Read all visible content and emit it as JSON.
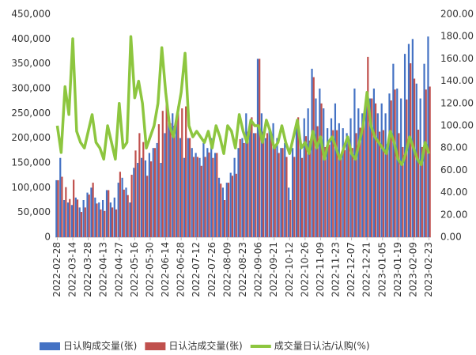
{
  "chart_data": {
    "type": "bar-line",
    "categories": [
      "2022-02-28",
      null,
      null,
      null,
      "2022-03-14",
      null,
      null,
      null,
      "2022-03-28",
      null,
      null,
      null,
      "2022-04-13",
      null,
      null,
      null,
      "2022-04-27",
      null,
      null,
      null,
      "2022-05-16",
      null,
      null,
      null,
      "2022-05-30",
      null,
      null,
      null,
      "2022-06-14",
      null,
      null,
      null,
      "2022-06-28",
      null,
      null,
      null,
      "2022-07-12",
      null,
      null,
      null,
      "2022-07-26",
      null,
      null,
      null,
      "2022-08-09",
      null,
      null,
      null,
      "2022-08-23",
      null,
      null,
      null,
      "2022-09-06",
      null,
      null,
      null,
      "2022-09-21",
      null,
      null,
      null,
      "2022-10-12",
      null,
      null,
      null,
      "2022-10-26",
      null,
      null,
      null,
      "2022-11-09",
      null,
      null,
      null,
      "2022-11-23",
      null,
      null,
      null,
      "2022-12-07",
      null,
      null,
      null,
      "2022-12-21",
      null,
      null,
      null,
      "2023-01-05",
      null,
      null,
      null,
      "2023-01-19",
      null,
      null,
      null,
      "2023-02-09",
      null,
      null,
      null,
      "2023-02-23"
    ],
    "series": [
      {
        "name": "日认购成交量(张)",
        "color": "#4472c4",
        "axis": "y",
        "values": [
          115000,
          160000,
          75000,
          70000,
          65000,
          80000,
          60000,
          75000,
          90000,
          100000,
          80000,
          70000,
          75000,
          95000,
          70000,
          80000,
          110000,
          120000,
          100000,
          70000,
          140000,
          150000,
          160000,
          155000,
          170000,
          180000,
          190000,
          150000,
          210000,
          230000,
          250000,
          240000,
          200000,
          160000,
          200000,
          180000,
          170000,
          160000,
          190000,
          180000,
          200000,
          170000,
          120000,
          100000,
          110000,
          130000,
          160000,
          180000,
          200000,
          250000,
          230000,
          210000,
          360000,
          250000,
          200000,
          220000,
          230000,
          200000,
          180000,
          190000,
          100000,
          180000,
          230000,
          200000,
          240000,
          260000,
          340000,
          280000,
          300000,
          260000,
          220000,
          240000,
          270000,
          230000,
          220000,
          210000,
          240000,
          300000,
          260000,
          250000,
          280000,
          280000,
          300000,
          250000,
          270000,
          250000,
          290000,
          350000,
          300000,
          280000,
          370000,
          390000,
          400000,
          310000,
          280000,
          350000,
          405000
        ]
      },
      {
        "name": "日认沽成交量(张)",
        "color": "#c0504d",
        "axis": "y",
        "values": [
          115000,
          122000,
          101000,
          77000,
          116000,
          76000,
          51000,
          60000,
          86000,
          110000,
          68000,
          56000,
          53000,
          95000,
          60000,
          56000,
          132000,
          96000,
          85000,
          126000,
          175000,
          210000,
          192000,
          124000,
          153000,
          180000,
          228000,
          255000,
          273000,
          230000,
          225000,
          264000,
          260000,
          264000,
          200000,
          162000,
          162000,
          144000,
          162000,
          171000,
          160000,
          170000,
          108000,
          75000,
          110000,
          124000,
          128000,
          198000,
          190000,
          213000,
          242000,
          210000,
          360000,
          213000,
          210000,
          209000,
          184000,
          170000,
          180000,
          162000,
          75000,
          162000,
          242000,
          160000,
          204000,
          195000,
          323000,
          224000,
          270000,
          182000,
          187000,
          216000,
          216000,
          161000,
          176000,
          189000,
          180000,
          210000,
          221000,
          250000,
          364000,
          280000,
          270000,
          213000,
          216000,
          188000,
          276000,
          298000,
          210000,
          182000,
          278000,
          351000,
          320000,
          217000,
          182000,
          298000,
          304000
        ]
      },
      {
        "name": "成交量日认沽/认购(%)",
        "color": "#8dc63f",
        "axis": "y2",
        "values": [
          100,
          76,
          135,
          110,
          178,
          95,
          85,
          80,
          95,
          110,
          85,
          80,
          70,
          100,
          85,
          70,
          120,
          80,
          85,
          180,
          125,
          140,
          120,
          80,
          90,
          100,
          120,
          170,
          130,
          100,
          90,
          110,
          130,
          165,
          100,
          90,
          95,
          90,
          85,
          95,
          80,
          100,
          90,
          75,
          100,
          95,
          80,
          110,
          95,
          85,
          105,
          100,
          100,
          85,
          105,
          95,
          80,
          85,
          100,
          85,
          75,
          90,
          105,
          80,
          85,
          75,
          95,
          80,
          90,
          70,
          85,
          90,
          80,
          70,
          80,
          90,
          75,
          70,
          85,
          100,
          130,
          100,
          90,
          85,
          80,
          75,
          95,
          85,
          70,
          65,
          75,
          90,
          80,
          70,
          65,
          85,
          75
        ]
      }
    ],
    "ylim": [
      0,
      450000
    ],
    "yticks": [
      {
        "value": 0,
        "label": "0"
      },
      {
        "value": 50000,
        "label": "50,000"
      },
      {
        "value": 100000,
        "label": "100,000"
      },
      {
        "value": 150000,
        "label": "150,000"
      },
      {
        "value": 200000,
        "label": "200,000"
      },
      {
        "value": 250000,
        "label": "250,000"
      },
      {
        "value": 300000,
        "label": "300,000"
      },
      {
        "value": 350000,
        "label": "350,000"
      },
      {
        "value": 400000,
        "label": "400,000"
      },
      {
        "value": 450000,
        "label": "450,000"
      }
    ],
    "y2lim": [
      0,
      200
    ],
    "y2ticks": [
      {
        "value": 0,
        "label": "0.00"
      },
      {
        "value": 20,
        "label": "20.00"
      },
      {
        "value": 40,
        "label": "40.00"
      },
      {
        "value": 60,
        "label": "60.00"
      },
      {
        "value": 80,
        "label": "80.00"
      },
      {
        "value": 100,
        "label": "100.00"
      },
      {
        "value": 120,
        "label": "120.00"
      },
      {
        "value": 140,
        "label": "140.00"
      },
      {
        "value": 160,
        "label": "160.00"
      },
      {
        "value": 180,
        "label": "180.00"
      },
      {
        "value": 200,
        "label": "200.00"
      }
    ],
    "legend": "bottom"
  }
}
